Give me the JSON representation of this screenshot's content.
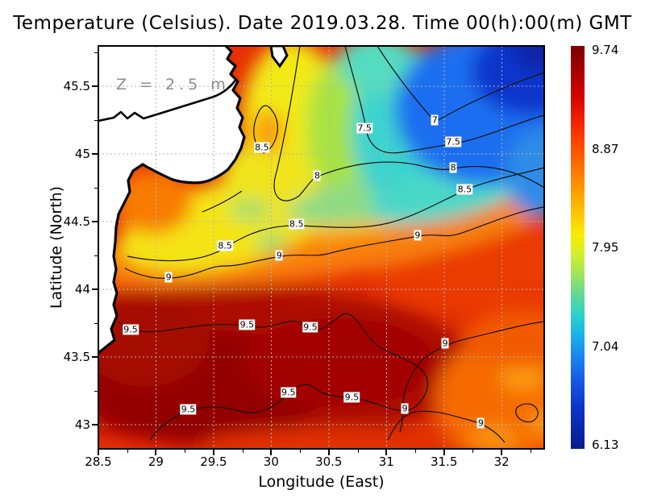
{
  "chart_data": {
    "type": "heatmap",
    "title": "Temperature (Celsius). Date 2019.03.28. Time 00(h):00(m) GMT",
    "annotation": "Z = 2.5 m",
    "xlabel": "Longitude (East)",
    "ylabel": "Latitude (North)",
    "x_range": [
      28.5,
      32.37
    ],
    "y_range": [
      42.82,
      45.8
    ],
    "x_ticks": [
      28.5,
      29,
      29.5,
      30,
      30.5,
      31,
      31.5,
      32
    ],
    "y_ticks": [
      45.5,
      45,
      44.5,
      44,
      43.5,
      43
    ],
    "value_min": 6.13,
    "value_max": 9.74,
    "colorbar_ticks": [
      9.74,
      8.87,
      7.95,
      7.04,
      6.13
    ],
    "colorbar_position": "right",
    "grid": true,
    "contour_interval": 0.5,
    "contour_levels": [
      7,
      7.5,
      8,
      8.5,
      9,
      9.5
    ],
    "contour_labels": [
      {
        "lon": 30.81,
        "lat": 45.19,
        "value": "7.5"
      },
      {
        "lon": 31.42,
        "lat": 45.25,
        "value": "7"
      },
      {
        "lon": 31.58,
        "lat": 45.09,
        "value": "7.5"
      },
      {
        "lon": 31.58,
        "lat": 44.9,
        "value": "8"
      },
      {
        "lon": 30.4,
        "lat": 44.84,
        "value": "8"
      },
      {
        "lon": 29.92,
        "lat": 45.05,
        "value": "8.5"
      },
      {
        "lon": 31.68,
        "lat": 44.74,
        "value": "8.5"
      },
      {
        "lon": 30.22,
        "lat": 44.48,
        "value": "8.5"
      },
      {
        "lon": 29.6,
        "lat": 44.32,
        "value": "8.5"
      },
      {
        "lon": 29.11,
        "lat": 44.09,
        "value": "9"
      },
      {
        "lon": 30.07,
        "lat": 44.25,
        "value": "9"
      },
      {
        "lon": 31.27,
        "lat": 44.4,
        "value": "9"
      },
      {
        "lon": 28.78,
        "lat": 43.7,
        "value": "9.5"
      },
      {
        "lon": 29.79,
        "lat": 43.74,
        "value": "9.5"
      },
      {
        "lon": 30.34,
        "lat": 43.72,
        "value": "9.5"
      },
      {
        "lon": 31.51,
        "lat": 43.6,
        "value": "9"
      },
      {
        "lon": 29.28,
        "lat": 43.11,
        "value": "9.5"
      },
      {
        "lon": 30.15,
        "lat": 43.24,
        "value": "9.5"
      },
      {
        "lon": 30.7,
        "lat": 43.2,
        "value": "9.5"
      },
      {
        "lon": 31.16,
        "lat": 43.12,
        "value": "9"
      },
      {
        "lon": 31.82,
        "lat": 43.01,
        "value": "9"
      }
    ],
    "colorbar_gradient": [
      {
        "p": 0,
        "c": "#7a0000"
      },
      {
        "p": 6,
        "c": "#a40000"
      },
      {
        "p": 12,
        "c": "#d00000"
      },
      {
        "p": 18,
        "c": "#f01e00"
      },
      {
        "p": 24,
        "c": "#fe4600"
      },
      {
        "p": 30,
        "c": "#ff7000"
      },
      {
        "p": 36,
        "c": "#ff9c00"
      },
      {
        "p": 42,
        "c": "#fec800"
      },
      {
        "p": 47,
        "c": "#f8ee00"
      },
      {
        "p": 52,
        "c": "#d0ee30"
      },
      {
        "p": 57,
        "c": "#9ce45e"
      },
      {
        "p": 62,
        "c": "#5ed898"
      },
      {
        "p": 67,
        "c": "#28d2cc"
      },
      {
        "p": 72,
        "c": "#18b0e8"
      },
      {
        "p": 77,
        "c": "#1a86ee"
      },
      {
        "p": 83,
        "c": "#1658e8"
      },
      {
        "p": 90,
        "c": "#0c32c8"
      },
      {
        "p": 100,
        "c": "#071c8e"
      }
    ],
    "land_color": "#ffffff",
    "coastline_color": "#000000",
    "grid_color": "#b4b4b4"
  }
}
